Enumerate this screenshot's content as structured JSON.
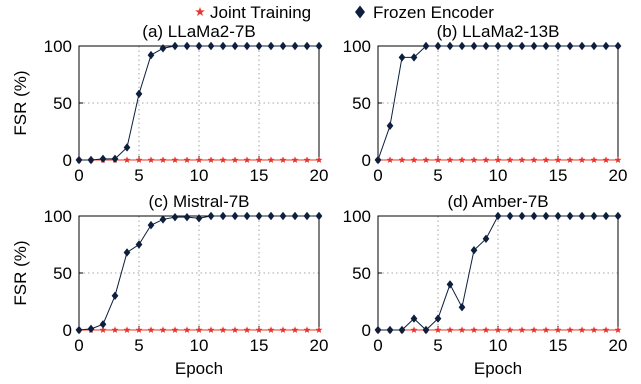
{
  "legend": [
    {
      "label": "Joint Training",
      "marker": "star",
      "color": "#e8342a"
    },
    {
      "label": "Frozen Encoder",
      "marker": "diamond",
      "color": "#0d1f3c"
    }
  ],
  "chart_data": [
    {
      "type": "line",
      "title": "(a) LLaMa2-7B",
      "xlabel": "",
      "ylabel": "FSR (%)",
      "xlim": [
        0,
        20
      ],
      "ylim": [
        0,
        100
      ],
      "xticks": [
        0,
        5,
        10,
        15,
        20
      ],
      "yticks": [
        0,
        50,
        100
      ],
      "grid": true,
      "x": [
        0,
        1,
        2,
        3,
        4,
        5,
        6,
        7,
        8,
        9,
        10,
        11,
        12,
        13,
        14,
        15,
        16,
        17,
        18,
        19,
        20
      ],
      "series": [
        {
          "name": "Joint Training",
          "values": [
            0,
            0,
            0,
            0,
            0,
            0,
            0,
            0,
            0,
            0,
            0,
            0,
            0,
            0,
            0,
            0,
            0,
            0,
            0,
            0,
            0
          ]
        },
        {
          "name": "Frozen Encoder",
          "values": [
            0,
            0,
            1,
            1,
            11,
            58,
            92,
            98,
            100,
            100,
            100,
            100,
            100,
            100,
            100,
            100,
            100,
            100,
            100,
            100,
            100
          ]
        }
      ]
    },
    {
      "type": "line",
      "title": "(b) LLaMa2-13B",
      "xlabel": "",
      "ylabel": "",
      "xlim": [
        0,
        20
      ],
      "ylim": [
        0,
        100
      ],
      "xticks": [
        0,
        5,
        10,
        15,
        20
      ],
      "yticks": [
        0,
        50,
        100
      ],
      "grid": true,
      "x": [
        0,
        1,
        2,
        3,
        4,
        5,
        6,
        7,
        8,
        9,
        10,
        11,
        12,
        13,
        14,
        15,
        16,
        17,
        18,
        19,
        20
      ],
      "series": [
        {
          "name": "Joint Training",
          "values": [
            0,
            0,
            0,
            0,
            0,
            0,
            0,
            0,
            0,
            0,
            0,
            0,
            0,
            0,
            0,
            0,
            0,
            0,
            0,
            0,
            0
          ]
        },
        {
          "name": "Frozen Encoder",
          "values": [
            0,
            30,
            90,
            90,
            100,
            100,
            100,
            100,
            100,
            100,
            100,
            100,
            100,
            100,
            100,
            100,
            100,
            100,
            100,
            100,
            100
          ]
        }
      ]
    },
    {
      "type": "line",
      "title": "(c) Mistral-7B",
      "xlabel": "Epoch",
      "ylabel": "FSR (%)",
      "xlim": [
        0,
        20
      ],
      "ylim": [
        0,
        100
      ],
      "xticks": [
        0,
        5,
        10,
        15,
        20
      ],
      "yticks": [
        0,
        50,
        100
      ],
      "grid": true,
      "x": [
        0,
        1,
        2,
        3,
        4,
        5,
        6,
        7,
        8,
        9,
        10,
        11,
        12,
        13,
        14,
        15,
        16,
        17,
        18,
        19,
        20
      ],
      "series": [
        {
          "name": "Joint Training",
          "values": [
            0,
            0,
            0,
            0,
            0,
            0,
            0,
            0,
            0,
            0,
            0,
            0,
            0,
            0,
            0,
            0,
            0,
            0,
            0,
            0,
            0
          ]
        },
        {
          "name": "Frozen Encoder",
          "values": [
            0,
            1,
            5,
            30,
            68,
            75,
            92,
            97,
            99,
            99,
            98,
            100,
            100,
            100,
            100,
            100,
            100,
            100,
            100,
            100,
            100
          ]
        }
      ]
    },
    {
      "type": "line",
      "title": "(d) Amber-7B",
      "xlabel": "Epoch",
      "ylabel": "",
      "xlim": [
        0,
        20
      ],
      "ylim": [
        0,
        100
      ],
      "xticks": [
        0,
        5,
        10,
        15,
        20
      ],
      "yticks": [
        0,
        50,
        100
      ],
      "grid": true,
      "x": [
        0,
        1,
        2,
        3,
        4,
        5,
        6,
        7,
        8,
        9,
        10,
        11,
        12,
        13,
        14,
        15,
        16,
        17,
        18,
        19,
        20
      ],
      "series": [
        {
          "name": "Joint Training",
          "values": [
            0,
            0,
            0,
            0,
            0,
            0,
            0,
            0,
            0,
            0,
            0,
            0,
            0,
            0,
            0,
            0,
            0,
            0,
            0,
            0,
            0
          ]
        },
        {
          "name": "Frozen Encoder",
          "values": [
            0,
            0,
            0,
            10,
            0,
            10,
            40,
            20,
            70,
            80,
            100,
            100,
            100,
            100,
            100,
            100,
            100,
            100,
            100,
            100,
            100
          ]
        }
      ]
    }
  ]
}
